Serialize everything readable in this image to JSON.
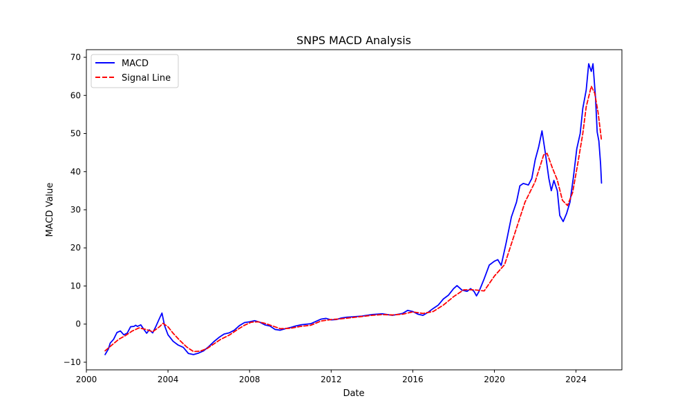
{
  "chart_data": {
    "type": "line",
    "title": "SNPS MACD Analysis",
    "xlabel": "Date",
    "ylabel": "MACD Value",
    "xlim": [
      "2000-01-01",
      "2026-04-01"
    ],
    "ylim": [
      -12,
      72
    ],
    "x_ticks": [
      "2000",
      "2004",
      "2008",
      "2012",
      "2016",
      "2020",
      "2024"
    ],
    "y_ticks": [
      -10,
      0,
      10,
      20,
      30,
      40,
      50,
      60,
      70
    ],
    "grid": false,
    "legend": {
      "placement": "top-left",
      "entries": [
        "MACD",
        "Signal Line"
      ]
    },
    "series": [
      {
        "name": "MACD",
        "color": "#0000ff",
        "style": "solid",
        "points": [
          [
            "2000-12-01",
            -8.0
          ],
          [
            "2001-02-01",
            -6.5
          ],
          [
            "2001-03-01",
            -5.0
          ],
          [
            "2001-05-01",
            -4.0
          ],
          [
            "2001-07-01",
            -2.2
          ],
          [
            "2001-09-01",
            -1.8
          ],
          [
            "2001-11-01",
            -2.8
          ],
          [
            "2002-01-01",
            -2.4
          ],
          [
            "2002-03-01",
            -0.7
          ],
          [
            "2002-05-01",
            -0.6
          ],
          [
            "2002-06-01",
            -0.3
          ],
          [
            "2002-07-01",
            -0.6
          ],
          [
            "2002-09-01",
            -0.2
          ],
          [
            "2002-11-01",
            -1.5
          ],
          [
            "2002-12-15",
            -2.4
          ],
          [
            "2003-02-01",
            -1.5
          ],
          [
            "2003-04-01",
            -2.3
          ],
          [
            "2003-06-01",
            -0.5
          ],
          [
            "2003-08-01",
            1.5
          ],
          [
            "2003-09-15",
            2.9
          ],
          [
            "2003-11-01",
            -0.4
          ],
          [
            "2004-01-01",
            -2.8
          ],
          [
            "2004-04-01",
            -4.5
          ],
          [
            "2004-07-01",
            -5.5
          ],
          [
            "2004-10-01",
            -6.1
          ],
          [
            "2005-01-01",
            -7.7
          ],
          [
            "2005-04-01",
            -8.0
          ],
          [
            "2005-07-01",
            -7.6
          ],
          [
            "2005-10-01",
            -7.0
          ],
          [
            "2006-01-01",
            -5.9
          ],
          [
            "2006-04-01",
            -4.6
          ],
          [
            "2006-07-01",
            -3.5
          ],
          [
            "2006-10-01",
            -2.6
          ],
          [
            "2007-01-01",
            -2.3
          ],
          [
            "2007-04-01",
            -1.6
          ],
          [
            "2007-07-01",
            -0.4
          ],
          [
            "2007-10-01",
            0.4
          ],
          [
            "2008-01-01",
            0.6
          ],
          [
            "2008-04-01",
            0.9
          ],
          [
            "2008-07-01",
            0.5
          ],
          [
            "2008-10-01",
            -0.2
          ],
          [
            "2009-01-01",
            -0.5
          ],
          [
            "2009-04-01",
            -1.4
          ],
          [
            "2009-07-01",
            -1.6
          ],
          [
            "2009-10-01",
            -1.2
          ],
          [
            "2010-01-01",
            -0.9
          ],
          [
            "2010-04-01",
            -0.5
          ],
          [
            "2010-07-01",
            -0.2
          ],
          [
            "2011-01-01",
            0.1
          ],
          [
            "2011-04-01",
            0.7
          ],
          [
            "2011-07-01",
            1.3
          ],
          [
            "2011-10-01",
            1.5
          ],
          [
            "2012-01-01",
            1.1
          ],
          [
            "2012-04-01",
            1.2
          ],
          [
            "2012-07-01",
            1.6
          ],
          [
            "2012-10-01",
            1.8
          ],
          [
            "2013-01-01",
            1.9
          ],
          [
            "2013-07-01",
            2.1
          ],
          [
            "2014-01-01",
            2.5
          ],
          [
            "2014-07-01",
            2.7
          ],
          [
            "2015-01-01",
            2.3
          ],
          [
            "2015-07-01",
            2.8
          ],
          [
            "2015-10-01",
            3.6
          ],
          [
            "2016-01-01",
            3.3
          ],
          [
            "2016-04-01",
            2.6
          ],
          [
            "2016-07-01",
            2.3
          ],
          [
            "2016-10-01",
            3.1
          ],
          [
            "2017-01-01",
            4.1
          ],
          [
            "2017-04-01",
            5.0
          ],
          [
            "2017-07-01",
            6.6
          ],
          [
            "2017-10-01",
            7.6
          ],
          [
            "2018-01-01",
            9.3
          ],
          [
            "2018-03-01",
            10.1
          ],
          [
            "2018-06-01",
            8.9
          ],
          [
            "2018-09-01",
            8.6
          ],
          [
            "2018-11-01",
            9.3
          ],
          [
            "2019-01-01",
            8.6
          ],
          [
            "2019-02-15",
            7.4
          ],
          [
            "2019-04-01",
            8.6
          ],
          [
            "2019-07-01",
            11.9
          ],
          [
            "2019-10-01",
            15.5
          ],
          [
            "2020-01-01",
            16.5
          ],
          [
            "2020-03-01",
            16.9
          ],
          [
            "2020-05-01",
            15.4
          ],
          [
            "2020-08-01",
            21.5
          ],
          [
            "2020-11-01",
            28.1
          ],
          [
            "2021-02-01",
            32.0
          ],
          [
            "2021-04-01",
            36.3
          ],
          [
            "2021-06-01",
            36.9
          ],
          [
            "2021-09-01",
            36.5
          ],
          [
            "2021-11-01",
            38.2
          ],
          [
            "2022-01-01",
            43.1
          ],
          [
            "2022-03-01",
            46.4
          ],
          [
            "2022-05-01",
            50.7
          ],
          [
            "2022-07-01",
            44.8
          ],
          [
            "2022-09-01",
            38.3
          ],
          [
            "2022-10-15",
            35.0
          ],
          [
            "2022-12-01",
            37.7
          ],
          [
            "2023-02-01",
            35.0
          ],
          [
            "2023-03-15",
            28.5
          ],
          [
            "2023-05-15",
            26.9
          ],
          [
            "2023-07-15",
            29.0
          ],
          [
            "2023-09-15",
            32.0
          ],
          [
            "2023-11-15",
            38.5
          ],
          [
            "2024-01-15",
            46.0
          ],
          [
            "2024-03-15",
            50.0
          ],
          [
            "2024-05-01",
            56.6
          ],
          [
            "2024-07-01",
            61.4
          ],
          [
            "2024-08-15",
            68.3
          ],
          [
            "2024-10-01",
            66.3
          ],
          [
            "2024-11-01",
            68.3
          ],
          [
            "2024-12-15",
            59.5
          ],
          [
            "2025-01-15",
            50.4
          ],
          [
            "2025-02-15",
            48.0
          ],
          [
            "2025-03-15",
            42.0
          ],
          [
            "2025-04-01",
            37.0
          ]
        ]
      },
      {
        "name": "Signal Line",
        "color": "#ff0000",
        "style": "dashed",
        "points": [
          [
            "2000-12-01",
            -7.0
          ],
          [
            "2001-04-01",
            -5.5
          ],
          [
            "2001-08-01",
            -4.0
          ],
          [
            "2001-12-01",
            -3.0
          ],
          [
            "2002-04-01",
            -1.8
          ],
          [
            "2002-08-01",
            -1.0
          ],
          [
            "2002-12-01",
            -1.4
          ],
          [
            "2003-04-01",
            -2.0
          ],
          [
            "2003-08-01",
            -0.7
          ],
          [
            "2003-10-01",
            0.2
          ],
          [
            "2004-01-01",
            -0.7
          ],
          [
            "2004-04-01",
            -2.4
          ],
          [
            "2004-08-01",
            -4.3
          ],
          [
            "2004-12-01",
            -6.0
          ],
          [
            "2005-04-01",
            -7.2
          ],
          [
            "2005-08-01",
            -7.1
          ],
          [
            "2005-12-01",
            -6.4
          ],
          [
            "2006-04-01",
            -5.2
          ],
          [
            "2006-08-01",
            -4.0
          ],
          [
            "2007-01-01",
            -2.9
          ],
          [
            "2007-06-01",
            -1.4
          ],
          [
            "2007-10-01",
            -0.3
          ],
          [
            "2008-02-01",
            0.5
          ],
          [
            "2008-06-01",
            0.6
          ],
          [
            "2008-10-01",
            0.2
          ],
          [
            "2009-02-01",
            -0.4
          ],
          [
            "2009-07-01",
            -1.2
          ],
          [
            "2010-01-01",
            -1.1
          ],
          [
            "2010-07-01",
            -0.6
          ],
          [
            "2011-01-01",
            -0.3
          ],
          [
            "2011-07-01",
            0.8
          ],
          [
            "2012-01-01",
            1.2
          ],
          [
            "2012-07-01",
            1.4
          ],
          [
            "2013-01-01",
            1.7
          ],
          [
            "2013-07-01",
            2.0
          ],
          [
            "2014-01-01",
            2.3
          ],
          [
            "2014-07-01",
            2.5
          ],
          [
            "2015-01-01",
            2.4
          ],
          [
            "2015-07-01",
            2.6
          ],
          [
            "2016-01-01",
            3.2
          ],
          [
            "2016-07-01",
            2.8
          ],
          [
            "2017-01-01",
            3.3
          ],
          [
            "2017-07-01",
            5.0
          ],
          [
            "2018-01-01",
            7.2
          ],
          [
            "2018-07-01",
            9.0
          ],
          [
            "2019-01-01",
            9.0
          ],
          [
            "2019-07-01",
            8.7
          ],
          [
            "2020-01-01",
            12.6
          ],
          [
            "2020-07-01",
            15.6
          ],
          [
            "2021-01-01",
            23.8
          ],
          [
            "2021-07-01",
            32.0
          ],
          [
            "2022-01-01",
            37.4
          ],
          [
            "2022-06-01",
            44.4
          ],
          [
            "2022-08-01",
            44.8
          ],
          [
            "2022-11-01",
            41.1
          ],
          [
            "2023-02-01",
            37.8
          ],
          [
            "2023-05-01",
            32.5
          ],
          [
            "2023-08-01",
            31.1
          ],
          [
            "2023-11-01",
            34.5
          ],
          [
            "2024-02-01",
            42.0
          ],
          [
            "2024-05-01",
            50.0
          ],
          [
            "2024-07-01",
            57.0
          ],
          [
            "2024-10-01",
            62.4
          ],
          [
            "2024-12-01",
            60.6
          ],
          [
            "2025-02-01",
            55.5
          ],
          [
            "2025-04-01",
            48.2
          ]
        ]
      }
    ]
  }
}
